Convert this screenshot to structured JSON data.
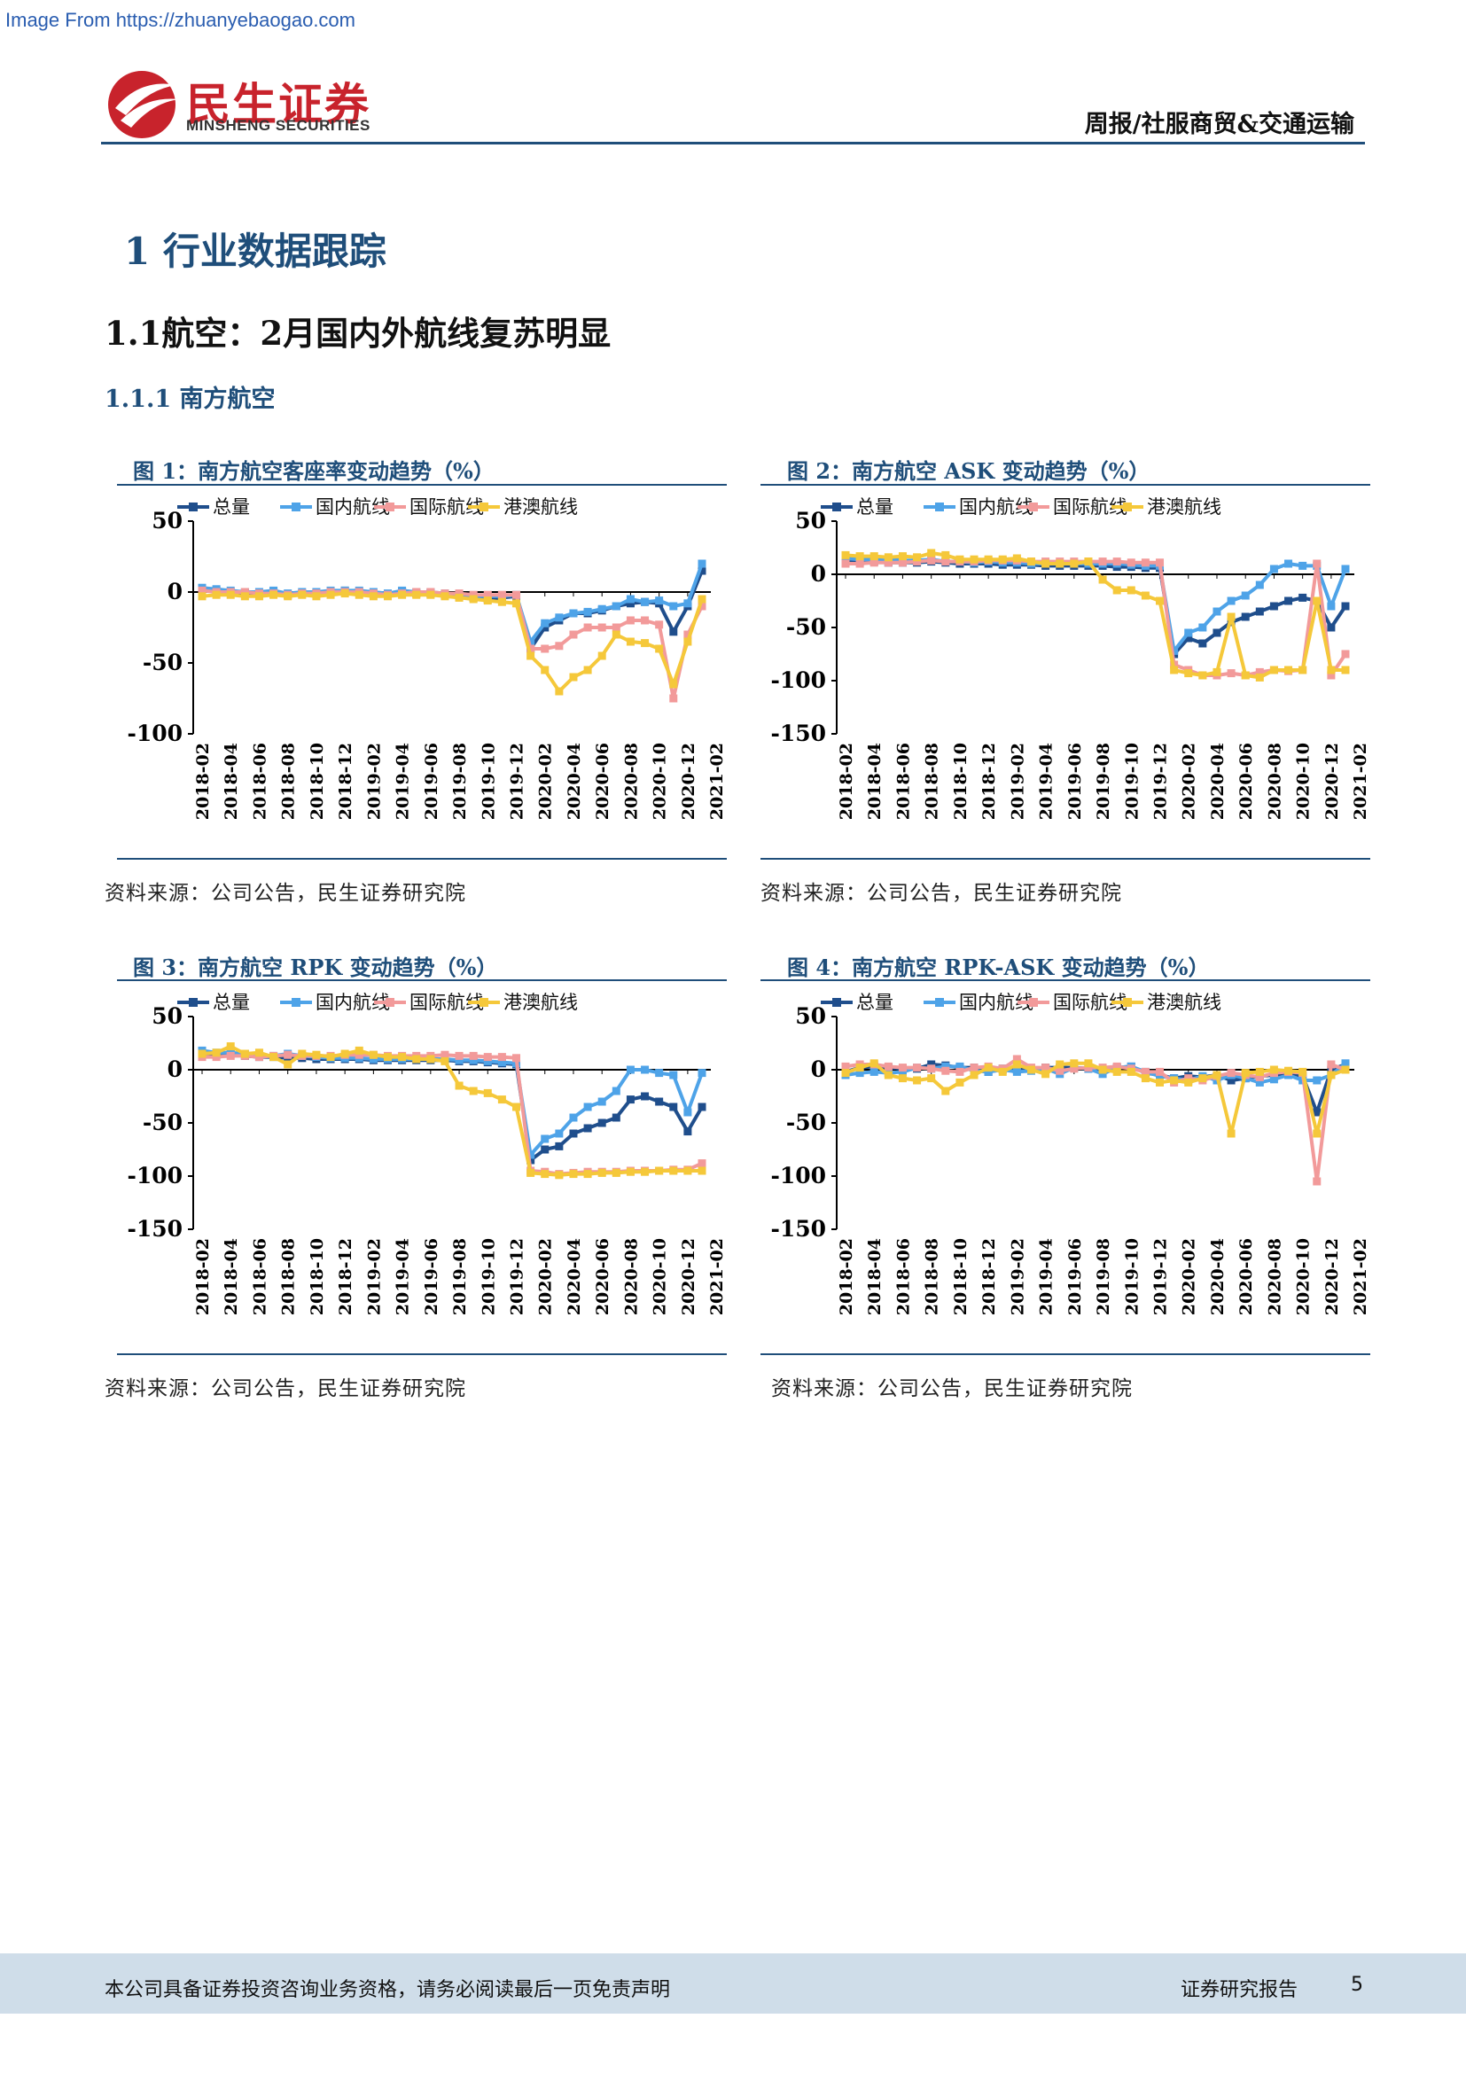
{
  "watermark": "Image From https://zhuanyebaogao.com",
  "header": {
    "logo_cn": "民生证券",
    "logo_en": "MINSHENG SECURITIES",
    "right_text": "周报/社服商贸&交通运输"
  },
  "section": {
    "h1": "1 行业数据跟踪",
    "h2": "1.1航空：2月国内外航线复苏明显",
    "h3": "1.1.1 南方航空"
  },
  "colors": {
    "总量": "#1f4e8c",
    "国内航线": "#4ea3e8",
    "国际航线": "#f29a9a",
    "港澳航线": "#f5c83a",
    "accent": "#1f4e7a"
  },
  "chart_data": [
    {
      "type": "line",
      "title": "图 1：南方航空客座率变动趋势（%）",
      "source": "资料来源：公司公告，民生证券研究院",
      "ylim": [
        -100,
        50
      ],
      "yticks": [
        "50",
        "0",
        "-50",
        "-100"
      ],
      "x_tick_labels": [
        "2018-02",
        "2018-04",
        "2018-06",
        "2018-08",
        "2018-10",
        "2018-12",
        "2019-02",
        "2019-04",
        "2019-06",
        "2019-08",
        "2019-10",
        "2019-12",
        "2020-02",
        "2020-04",
        "2020-06",
        "2020-08",
        "2020-10",
        "2020-12",
        "2021-02"
      ],
      "legend": "top",
      "series": [
        {
          "name": "总量",
          "values": [
            2,
            1,
            0,
            -1,
            -1,
            0,
            -2,
            -1,
            -1,
            0,
            1,
            0,
            -1,
            -2,
            0,
            -1,
            -1,
            -2,
            -3,
            -4,
            -5,
            -4,
            -3,
            -40,
            -25,
            -20,
            -15,
            -15,
            -13,
            -10,
            -8,
            -7,
            -8,
            -28,
            -10,
            15
          ]
        },
        {
          "name": "国内航线",
          "values": [
            3,
            2,
            1,
            0,
            0,
            1,
            -1,
            0,
            0,
            1,
            1,
            1,
            0,
            -1,
            1,
            0,
            0,
            -1,
            -2,
            -3,
            -3,
            -3,
            -2,
            -35,
            -22,
            -18,
            -15,
            -14,
            -12,
            -10,
            -5,
            -7,
            -6,
            -10,
            -8,
            20
          ]
        },
        {
          "name": "国际航线",
          "values": [
            1,
            0,
            0,
            0,
            -1,
            -1,
            -2,
            -1,
            -1,
            0,
            0,
            0,
            -1,
            -2,
            -1,
            0,
            0,
            -1,
            -1,
            -2,
            -2,
            -2,
            -2,
            -40,
            -40,
            -38,
            -30,
            -25,
            -25,
            -25,
            -20,
            -20,
            -23,
            -75,
            -30,
            -10
          ]
        },
        {
          "name": "港澳航线",
          "values": [
            -3,
            -2,
            -2,
            -3,
            -3,
            -2,
            -3,
            -2,
            -3,
            -2,
            -1,
            -2,
            -3,
            -3,
            -2,
            -2,
            -2,
            -3,
            -4,
            -5,
            -6,
            -7,
            -8,
            -45,
            -55,
            -70,
            -60,
            -55,
            -45,
            -30,
            -35,
            -36,
            -40,
            -65,
            -35,
            -5
          ]
        }
      ]
    },
    {
      "type": "line",
      "title": "图 2：南方航空 ASK 变动趋势（%）",
      "source": "资料来源：公司公告，民生证券研究院",
      "ylim": [
        -150,
        50
      ],
      "yticks": [
        "50",
        "0",
        "-50",
        "-100",
        "-150"
      ],
      "x_tick_labels": [
        "2018-02",
        "2018-04",
        "2018-06",
        "2018-08",
        "2018-10",
        "2018-12",
        "2019-02",
        "2019-04",
        "2019-06",
        "2019-08",
        "2019-10",
        "2019-12",
        "2020-02",
        "2020-04",
        "2020-06",
        "2020-08",
        "2020-10",
        "2020-12",
        "2021-02"
      ],
      "legend": "top",
      "series": [
        {
          "name": "总量",
          "values": [
            12,
            12,
            12,
            11,
            11,
            11,
            12,
            11,
            10,
            10,
            10,
            9,
            9,
            9,
            8,
            8,
            8,
            8,
            8,
            7,
            7,
            6,
            6,
            -75,
            -60,
            -65,
            -55,
            -45,
            -40,
            -35,
            -30,
            -25,
            -22,
            -25,
            -50,
            -30
          ]
        },
        {
          "name": "国内航线",
          "values": [
            15,
            14,
            14,
            14,
            13,
            13,
            14,
            12,
            12,
            11,
            12,
            11,
            11,
            10,
            10,
            10,
            10,
            10,
            10,
            10,
            9,
            8,
            8,
            -72,
            -55,
            -50,
            -35,
            -25,
            -20,
            -10,
            5,
            10,
            8,
            8,
            -30,
            5
          ]
        },
        {
          "name": "国际航线",
          "values": [
            10,
            10,
            11,
            11,
            11,
            12,
            13,
            12,
            12,
            12,
            13,
            13,
            13,
            12,
            12,
            12,
            12,
            12,
            12,
            12,
            11,
            11,
            11,
            -85,
            -90,
            -95,
            -95,
            -93,
            -95,
            -92,
            -90,
            -91,
            -90,
            10,
            -95,
            -75
          ]
        },
        {
          "name": "港澳航线",
          "values": [
            18,
            17,
            17,
            16,
            17,
            16,
            20,
            18,
            14,
            14,
            14,
            14,
            15,
            12,
            10,
            10,
            10,
            12,
            -5,
            -15,
            -15,
            -20,
            -25,
            -90,
            -93,
            -95,
            -92,
            -40,
            -95,
            -97,
            -90,
            -90,
            -90,
            -25,
            -90,
            -90
          ]
        }
      ]
    },
    {
      "type": "line",
      "title": "图 3：南方航空 RPK 变动趋势（%）",
      "source": "资料来源：公司公告，民生证券研究院",
      "ylim": [
        -150,
        50
      ],
      "yticks": [
        "50",
        "0",
        "-50",
        "-100",
        "-150"
      ],
      "x_tick_labels": [
        "2018-02",
        "2018-04",
        "2018-06",
        "2018-08",
        "2018-10",
        "2018-12",
        "2019-02",
        "2019-04",
        "2019-06",
        "2019-08",
        "2019-10",
        "2019-12",
        "2020-02",
        "2020-04",
        "2020-06",
        "2020-08",
        "2020-10",
        "2020-12",
        "2021-02"
      ],
      "legend": "top",
      "series": [
        {
          "name": "总量",
          "values": [
            15,
            14,
            15,
            13,
            12,
            12,
            11,
            11,
            10,
            10,
            10,
            10,
            9,
            9,
            9,
            9,
            9,
            9,
            8,
            8,
            7,
            6,
            5,
            -85,
            -75,
            -72,
            -60,
            -55,
            -50,
            -45,
            -28,
            -25,
            -30,
            -35,
            -58,
            -35
          ]
        },
        {
          "name": "国内航线",
          "values": [
            18,
            16,
            16,
            15,
            14,
            13,
            15,
            13,
            12,
            11,
            11,
            11,
            10,
            10,
            10,
            10,
            10,
            10,
            9,
            9,
            8,
            7,
            6,
            -80,
            -65,
            -60,
            -45,
            -35,
            -30,
            -20,
            0,
            0,
            -3,
            -5,
            -40,
            -3
          ]
        },
        {
          "name": "国际航线",
          "values": [
            12,
            12,
            13,
            13,
            12,
            13,
            14,
            13,
            13,
            13,
            14,
            14,
            14,
            13,
            13,
            13,
            13,
            14,
            13,
            13,
            12,
            12,
            11,
            -95,
            -96,
            -98,
            -97,
            -96,
            -96,
            -96,
            -95,
            -95,
            -95,
            -94,
            -94,
            -88
          ]
        },
        {
          "name": "港澳航线",
          "values": [
            15,
            16,
            22,
            15,
            16,
            12,
            5,
            15,
            14,
            12,
            15,
            18,
            14,
            12,
            12,
            10,
            10,
            8,
            -15,
            -20,
            -22,
            -28,
            -35,
            -97,
            -98,
            -99,
            -98,
            -98,
            -97,
            -97,
            -96,
            -96,
            -95,
            -95,
            -95,
            -95
          ]
        }
      ]
    },
    {
      "type": "line",
      "title": "图 4：南方航空 RPK-ASK 变动趋势（%）",
      "source": "资料来源：公司公告，民生证券研究院",
      "ylim": [
        -150,
        50
      ],
      "yticks": [
        "50",
        "0",
        "-50",
        "-100",
        "-150"
      ],
      "x_tick_labels": [
        "2018-02",
        "2018-04",
        "2018-06",
        "2018-08",
        "2018-10",
        "2018-12",
        "2019-02",
        "2019-04",
        "2019-06",
        "2019-08",
        "2019-10",
        "2019-12",
        "2020-02",
        "2020-04",
        "2020-06",
        "2020-08",
        "2020-10",
        "2020-12",
        "2021-02"
      ],
      "legend": "top",
      "series": [
        {
          "name": "总量",
          "values": [
            -2,
            2,
            3,
            2,
            1,
            1,
            5,
            4,
            2,
            2,
            -2,
            1,
            0,
            1,
            2,
            2,
            2,
            1,
            0,
            2,
            3,
            -3,
            -5,
            -8,
            -6,
            -7,
            -5,
            -10,
            -8,
            -6,
            -5,
            -4,
            -6,
            -40,
            0,
            5
          ]
        },
        {
          "name": "国内航线",
          "values": [
            -5,
            -3,
            -2,
            -3,
            -2,
            2,
            1,
            3,
            3,
            -1,
            -2,
            0,
            -2,
            -1,
            1,
            -4,
            2,
            1,
            -4,
            2,
            3,
            -2,
            -6,
            -8,
            -10,
            -6,
            -10,
            -5,
            -8,
            -12,
            -9,
            -5,
            -10,
            -10,
            -5,
            6
          ]
        },
        {
          "name": "国际航线",
          "values": [
            3,
            5,
            5,
            3,
            2,
            2,
            1,
            -1,
            -2,
            2,
            3,
            1,
            10,
            2,
            2,
            -1,
            1,
            2,
            2,
            3,
            1,
            -2,
            -2,
            -12,
            -8,
            -10,
            -6,
            -3,
            -5,
            -7,
            -3,
            -2,
            -3,
            -105,
            5,
            0
          ]
        },
        {
          "name": "港澳航线",
          "values": [
            -3,
            2,
            6,
            -5,
            -8,
            -10,
            -8,
            -20,
            -12,
            -5,
            2,
            -2,
            5,
            0,
            -4,
            5,
            6,
            6,
            0,
            -2,
            -2,
            -8,
            -12,
            -10,
            -12,
            -8,
            -5,
            -60,
            -3,
            -2,
            0,
            -1,
            -2,
            -60,
            -5,
            0
          ]
        }
      ]
    }
  ],
  "footer": {
    "disclaimer": "本公司具备证券投资咨询业务资格，请务必阅读最后一页免责声明",
    "report_type": "证券研究报告",
    "page_number": "5"
  }
}
